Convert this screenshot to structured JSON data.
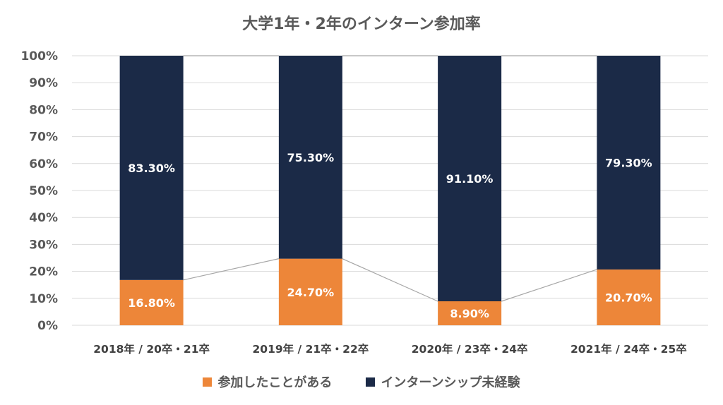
{
  "chart_data": {
    "type": "bar",
    "stacked": true,
    "title": "大学1年・2年のインターン参加率",
    "categories": [
      "2018年 / 20卒・21卒",
      "2019年 / 21卒・22卒",
      "2020年 / 23卒・24卒",
      "2021年 / 24卒・25卒"
    ],
    "series": [
      {
        "name": "参加したことがある",
        "values": [
          16.8,
          24.7,
          8.9,
          20.7
        ],
        "labels": [
          "16.80%",
          "24.70%",
          "8.90%",
          "20.70%"
        ],
        "color": "#ED8639"
      },
      {
        "name": "インターンシップ未経験",
        "values": [
          83.3,
          75.3,
          91.1,
          79.3
        ],
        "labels": [
          "83.30%",
          "75.30%",
          "91.10%",
          "79.30%"
        ],
        "color": "#1B2A47"
      }
    ],
    "yticks": [
      "0%",
      "10%",
      "20%",
      "30%",
      "40%",
      "50%",
      "60%",
      "70%",
      "80%",
      "90%",
      "100%"
    ],
    "ylim": [
      0,
      100
    ],
    "grid": true,
    "series_lines": true,
    "legend_position": "bottom"
  }
}
